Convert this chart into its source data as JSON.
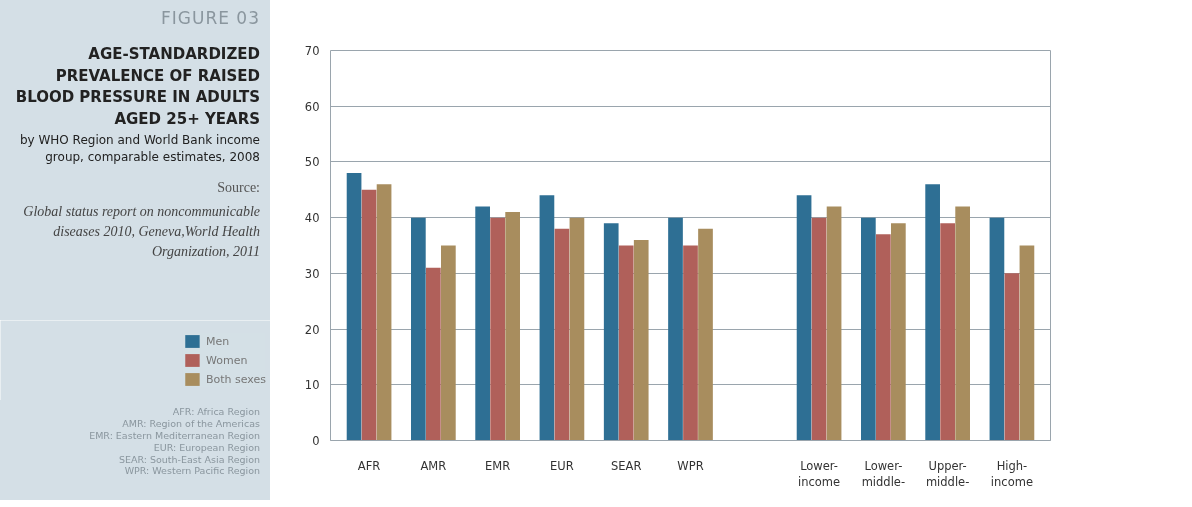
{
  "chart_data": {
    "type": "bar",
    "title": "AGE-STANDARDIZED PREVALENCE OF RAISED BLOOD PRESSURE IN ADULTS AGED 25+ YEARS",
    "subtitle": "by WHO Region and World Bank income group, comparable estimates, 2008",
    "annotations": [
      "FIGURE 03",
      "Source:",
      "Global status report on noncommunicable diseases 2010, Geneva,World Health Organization, 2011",
      "AFR: Africa Region",
      "AMR: Region of the Americas",
      "EMR: Eastern Mediterranean Region",
      "EUR: European Region",
      "SEAR: South-East Asia Region",
      "WPR: Western Pacific Region"
    ],
    "categories": [
      "AFR",
      "AMR",
      "EMR",
      "EUR",
      "SEAR",
      "WPR",
      null,
      "Lower-\nincome",
      "Lower-\nmiddle-",
      "Upper-\nmiddle-",
      "High-\nincome"
    ],
    "series": [
      {
        "name": "Men",
        "color": "#2e6f94",
        "values": [
          48,
          40,
          42,
          44,
          39,
          40,
          null,
          44,
          40,
          46,
          40
        ]
      },
      {
        "name": "Women",
        "color": "#b0605a",
        "values": [
          45,
          31,
          40,
          38,
          35,
          35,
          null,
          40,
          37,
          39,
          30
        ]
      },
      {
        "name": "Both sexes",
        "color": "#a88d5e",
        "values": [
          46,
          35,
          41,
          40,
          36,
          38,
          null,
          42,
          39,
          42,
          35
        ]
      }
    ],
    "ylim": [
      0,
      70
    ],
    "yticks": [
      0,
      10,
      20,
      30,
      40,
      50,
      60,
      70
    ],
    "grid": "y",
    "legend": "left"
  }
}
